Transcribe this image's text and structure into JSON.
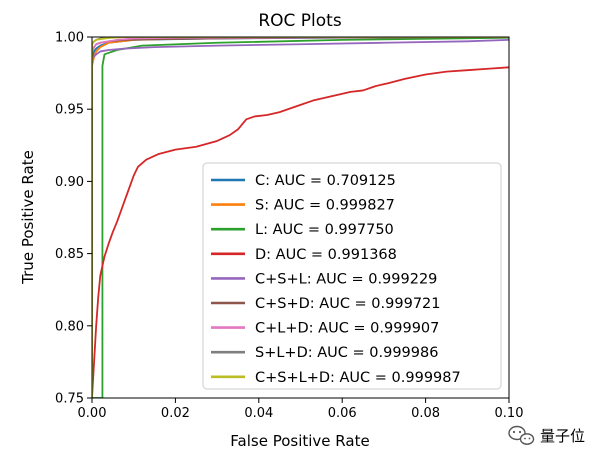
{
  "chart_data": {
    "type": "line",
    "title": "ROC Plots",
    "xlabel": "False Positive Rate",
    "ylabel": "True Positive Rate",
    "xlim": [
      0.0,
      0.1
    ],
    "ylim": [
      0.75,
      1.0
    ],
    "xticks": [
      "0.00",
      "0.02",
      "0.04",
      "0.06",
      "0.08",
      "0.10"
    ],
    "yticks": [
      "0.75",
      "0.80",
      "0.85",
      "0.90",
      "0.95",
      "1.00"
    ],
    "grid": false,
    "legend_position": "lower-right",
    "series": [
      {
        "name": "C: AUC = 0.709125",
        "color": "#1f77b4",
        "x": [
          0.0,
          0.0,
          0.0005,
          0.001,
          0.002,
          0.004,
          0.01,
          0.03,
          0.06,
          0.1
        ],
        "y": [
          0.75,
          0.985,
          0.99,
          0.992,
          0.994,
          0.996,
          0.998,
          0.999,
          0.9995,
          1.0
        ]
      },
      {
        "name": "S: AUC = 0.999827",
        "color": "#ff7f0e",
        "x": [
          0.0,
          0.0,
          0.0005,
          0.001,
          0.002,
          0.004,
          0.01,
          0.03,
          0.1
        ],
        "y": [
          0.75,
          0.98,
          0.986,
          0.99,
          0.993,
          0.996,
          0.998,
          0.9995,
          1.0
        ]
      },
      {
        "name": "L: AUC = 0.997750",
        "color": "#2ca02c",
        "x": [
          0.0,
          0.0,
          0.0025,
          0.0025,
          0.003,
          0.006,
          0.012,
          0.03,
          0.06,
          0.1
        ],
        "y": [
          0.75,
          0.75,
          0.75,
          0.98,
          0.988,
          0.991,
          0.994,
          0.996,
          0.998,
          0.9995
        ]
      },
      {
        "name": "D: AUC = 0.991368",
        "color": "#d62728",
        "x": [
          0.0,
          0.001,
          0.0015,
          0.002,
          0.003,
          0.004,
          0.005,
          0.006,
          0.007,
          0.008,
          0.009,
          0.01,
          0.011,
          0.013,
          0.016,
          0.02,
          0.025,
          0.03,
          0.033,
          0.035,
          0.037,
          0.039,
          0.042,
          0.045,
          0.048,
          0.05,
          0.053,
          0.056,
          0.059,
          0.062,
          0.065,
          0.068,
          0.071,
          0.075,
          0.08,
          0.085,
          0.09,
          0.095,
          0.1
        ],
        "y": [
          0.75,
          0.8,
          0.82,
          0.835,
          0.848,
          0.857,
          0.865,
          0.872,
          0.88,
          0.888,
          0.896,
          0.904,
          0.91,
          0.915,
          0.919,
          0.922,
          0.924,
          0.928,
          0.932,
          0.936,
          0.943,
          0.945,
          0.946,
          0.948,
          0.951,
          0.953,
          0.956,
          0.958,
          0.96,
          0.962,
          0.963,
          0.966,
          0.968,
          0.971,
          0.974,
          0.976,
          0.977,
          0.978,
          0.979
        ]
      },
      {
        "name": "C+S+L: AUC = 0.999229",
        "color": "#9467bd",
        "x": [
          0.0,
          0.0,
          0.001,
          0.002,
          0.004,
          0.008,
          0.015,
          0.03,
          0.05,
          0.07,
          0.09,
          0.1
        ],
        "y": [
          0.75,
          0.985,
          0.988,
          0.99,
          0.991,
          0.992,
          0.993,
          0.994,
          0.995,
          0.996,
          0.997,
          0.998
        ]
      },
      {
        "name": "C+S+D: AUC = 0.999721",
        "color": "#8c564b",
        "x": [
          0.0,
          0.0,
          0.0005,
          0.001,
          0.002,
          0.004,
          0.008,
          0.015,
          0.03,
          0.05,
          0.1
        ],
        "y": [
          0.75,
          0.99,
          0.993,
          0.995,
          0.996,
          0.997,
          0.998,
          0.9985,
          0.999,
          0.9995,
          1.0
        ]
      },
      {
        "name": "C+L+D: AUC = 0.999907",
        "color": "#e377c2",
        "x": [
          0.0,
          0.0,
          0.0005,
          0.001,
          0.002,
          0.004,
          0.006,
          0.01,
          0.02,
          0.1
        ],
        "y": [
          0.75,
          0.99,
          0.993,
          0.995,
          0.996,
          0.997,
          0.998,
          0.999,
          0.9995,
          1.0
        ]
      },
      {
        "name": "S+L+D: AUC = 0.999986",
        "color": "#7f7f7f",
        "x": [
          0.0,
          0.0,
          0.0005,
          0.001,
          0.002,
          0.004,
          0.008,
          0.1
        ],
        "y": [
          0.75,
          0.995,
          0.997,
          0.998,
          0.999,
          0.9995,
          1.0,
          1.0
        ]
      },
      {
        "name": "C+S+L+D: AUC = 0.999987",
        "color": "#bcbd22",
        "x": [
          0.0,
          0.0,
          0.0005,
          0.001,
          0.002,
          0.004,
          0.008,
          0.1
        ],
        "y": [
          0.75,
          0.995,
          0.997,
          0.998,
          0.9985,
          0.9993,
          1.0,
          1.0
        ]
      }
    ]
  },
  "watermark": {
    "text": "量子位",
    "icon": "wechat-icon"
  }
}
